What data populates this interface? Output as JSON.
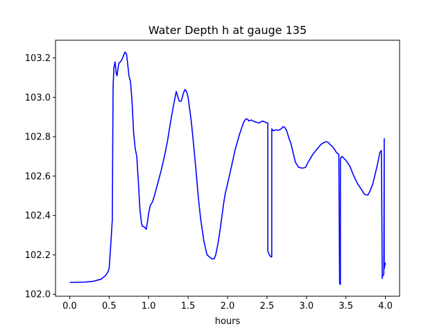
{
  "chart_data": {
    "type": "line",
    "title": "Water Depth h at gauge 135",
    "xlabel": "hours",
    "ylabel": "",
    "xlim": [
      -0.18,
      4.18
    ],
    "ylim": [
      101.99,
      103.29
    ],
    "xticks": [
      0.0,
      0.5,
      1.0,
      1.5,
      2.0,
      2.5,
      3.0,
      3.5,
      4.0
    ],
    "xtick_labels": [
      "0.0",
      "0.5",
      "1.0",
      "1.5",
      "2.0",
      "2.5",
      "3.0",
      "3.5",
      "4.0"
    ],
    "yticks": [
      102.0,
      102.2,
      102.4,
      102.6,
      102.8,
      103.0,
      103.2
    ],
    "ytick_labels": [
      "102.0",
      "102.2",
      "102.4",
      "102.6",
      "102.8",
      "103.0",
      "103.2"
    ],
    "grid": false,
    "series": [
      {
        "color": "#0000ff",
        "x": [
          0.0,
          0.2,
          0.3,
          0.4,
          0.45,
          0.48,
          0.5,
          0.52,
          0.54,
          0.545,
          0.55,
          0.56,
          0.575,
          0.59,
          0.6,
          0.62,
          0.64,
          0.66,
          0.68,
          0.7,
          0.72,
          0.74,
          0.75,
          0.77,
          0.79,
          0.81,
          0.83,
          0.85,
          0.87,
          0.89,
          0.91,
          0.92,
          0.93,
          0.95,
          0.97,
          0.99,
          1.0,
          1.02,
          1.05,
          1.08,
          1.12,
          1.16,
          1.2,
          1.24,
          1.28,
          1.32,
          1.35,
          1.38,
          1.39,
          1.41,
          1.42,
          1.44,
          1.46,
          1.48,
          1.5,
          1.52,
          1.54,
          1.57,
          1.6,
          1.63,
          1.66,
          1.7,
          1.74,
          1.77,
          1.8,
          1.83,
          1.85,
          1.88,
          1.91,
          1.95,
          1.97,
          2.0,
          2.05,
          2.1,
          2.15,
          2.2,
          2.23,
          2.25,
          2.27,
          2.3,
          2.35,
          2.4,
          2.44,
          2.47,
          2.5,
          2.51,
          2.51,
          2.53,
          2.55,
          2.56,
          2.56,
          2.58,
          2.61,
          2.65,
          2.68,
          2.7,
          2.72,
          2.75,
          2.78,
          2.8,
          2.83,
          2.86,
          2.9,
          2.95,
          2.99,
          3.02,
          3.05,
          3.08,
          3.1,
          3.14,
          3.18,
          3.22,
          3.25,
          3.28,
          3.3,
          3.34,
          3.38,
          3.41,
          3.42,
          3.42,
          3.43,
          3.43,
          3.45,
          3.5,
          3.55,
          3.6,
          3.65,
          3.7,
          3.73,
          3.75,
          3.78,
          3.8,
          3.84,
          3.87,
          3.9,
          3.93,
          3.95,
          3.96,
          3.96,
          3.98,
          3.985,
          3.985,
          3.99,
          4.0
        ],
        "values": [
          102.06,
          102.062,
          102.066,
          102.077,
          102.093,
          102.11,
          102.13,
          102.25,
          102.38,
          102.75,
          103.06,
          103.15,
          103.18,
          103.12,
          103.11,
          103.17,
          103.18,
          103.19,
          103.21,
          103.23,
          103.22,
          103.15,
          103.11,
          103.08,
          102.98,
          102.82,
          102.74,
          102.7,
          102.57,
          102.43,
          102.36,
          102.345,
          102.345,
          102.34,
          102.33,
          102.38,
          102.41,
          102.45,
          102.47,
          102.51,
          102.57,
          102.63,
          102.7,
          102.78,
          102.88,
          102.97,
          103.03,
          102.99,
          102.98,
          102.98,
          102.99,
          103.02,
          103.04,
          103.03,
          103.0,
          102.94,
          102.88,
          102.76,
          102.63,
          102.49,
          102.38,
          102.27,
          102.2,
          102.19,
          102.18,
          102.18,
          102.2,
          102.26,
          102.34,
          102.46,
          102.51,
          102.56,
          102.65,
          102.74,
          102.81,
          102.87,
          102.89,
          102.89,
          102.88,
          102.885,
          102.875,
          102.87,
          102.88,
          102.875,
          102.87,
          102.87,
          102.22,
          102.2,
          102.19,
          102.19,
          102.84,
          102.83,
          102.835,
          102.833,
          102.84,
          102.85,
          102.85,
          102.83,
          102.79,
          102.77,
          102.72,
          102.67,
          102.645,
          102.64,
          102.645,
          102.67,
          102.69,
          102.71,
          102.72,
          102.74,
          102.76,
          102.77,
          102.775,
          102.77,
          102.76,
          102.745,
          102.72,
          102.71,
          102.06,
          102.055,
          102.05,
          102.69,
          102.7,
          102.68,
          102.65,
          102.6,
          102.56,
          102.53,
          102.51,
          102.505,
          102.505,
          102.52,
          102.56,
          102.61,
          102.66,
          102.72,
          102.73,
          102.08,
          102.09,
          102.1,
          102.79,
          102.13,
          102.14,
          102.16
        ]
      }
    ]
  }
}
